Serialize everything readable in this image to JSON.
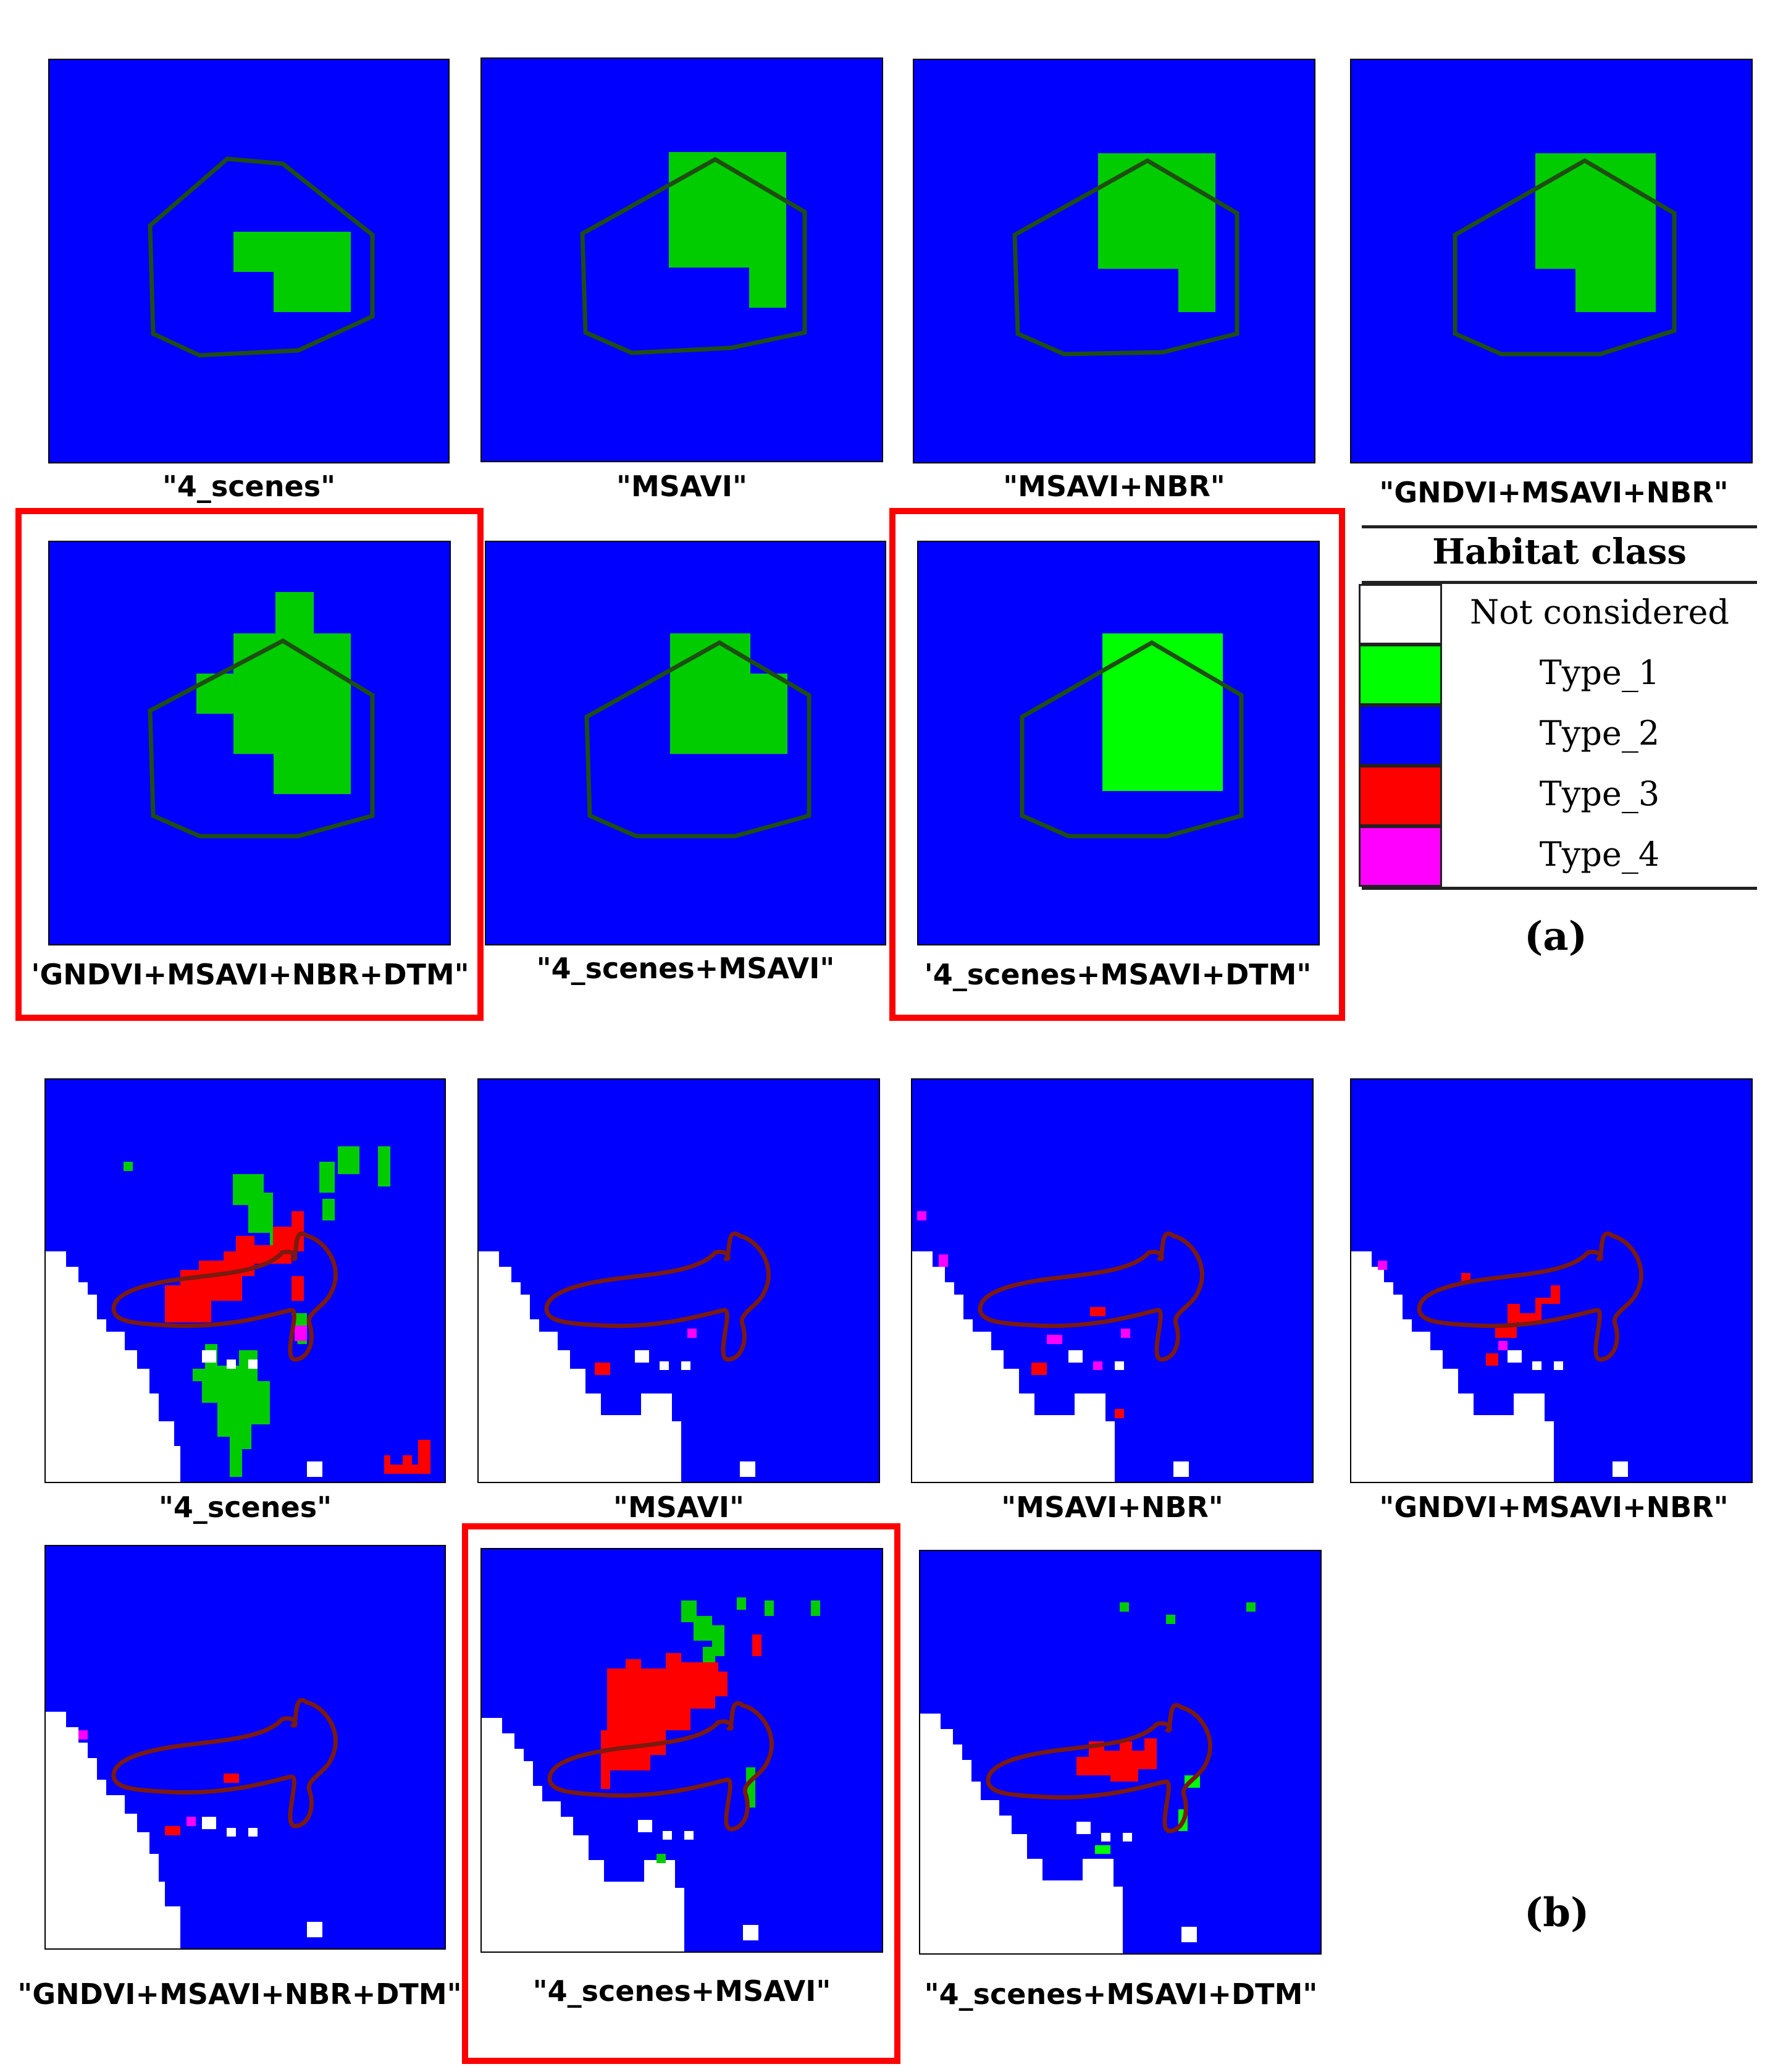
{
  "panel_a": {
    "label": "(a)",
    "maps": [
      {
        "caption": "\"4_scenes\"",
        "highlighted": false
      },
      {
        "caption": "\"MSAVI\"",
        "highlighted": false
      },
      {
        "caption": "\"MSAVI+NBR\"",
        "highlighted": false
      },
      {
        "caption": "\"GNDVI+MSAVI+NBR\"",
        "highlighted": false
      },
      {
        "caption": "'GNDVI+MSAVI+NBR+DTM\"",
        "highlighted": true
      },
      {
        "caption": "\"4_scenes+MSAVI\"",
        "highlighted": false
      },
      {
        "caption": "'4_scenes+MSAVI+DTM\"",
        "highlighted": true
      }
    ]
  },
  "panel_b": {
    "label": "(b)",
    "maps": [
      {
        "caption": "\"4_scenes\"",
        "highlighted": false
      },
      {
        "caption": "\"MSAVI\"",
        "highlighted": false
      },
      {
        "caption": "\"MSAVI+NBR\"",
        "highlighted": false
      },
      {
        "caption": "\"GNDVI+MSAVI+NBR\"",
        "highlighted": false
      },
      {
        "caption": "\"GNDVI+MSAVI+NBR+DTM\"",
        "highlighted": false
      },
      {
        "caption": "\"4_scenes+MSAVI\"",
        "highlighted": true
      },
      {
        "caption": "\"4_scenes+MSAVI+DTM\"",
        "highlighted": false
      }
    ]
  },
  "legend": {
    "title": "Habitat class",
    "items": [
      {
        "label": "Not considered",
        "color": "#ffffff"
      },
      {
        "label": "Type_1",
        "color": "#00ff00"
      },
      {
        "label": "Type_2",
        "color": "#0000ff"
      },
      {
        "label": "Type_3",
        "color": "#ff0000"
      },
      {
        "label": "Type_4",
        "color": "#ff00ff"
      }
    ]
  },
  "colors": {
    "type1_shaded": "#00cc00",
    "boundary_a": "#1f4d12",
    "boundary_b": "#7a1a10",
    "highlight": "#ff0000"
  }
}
